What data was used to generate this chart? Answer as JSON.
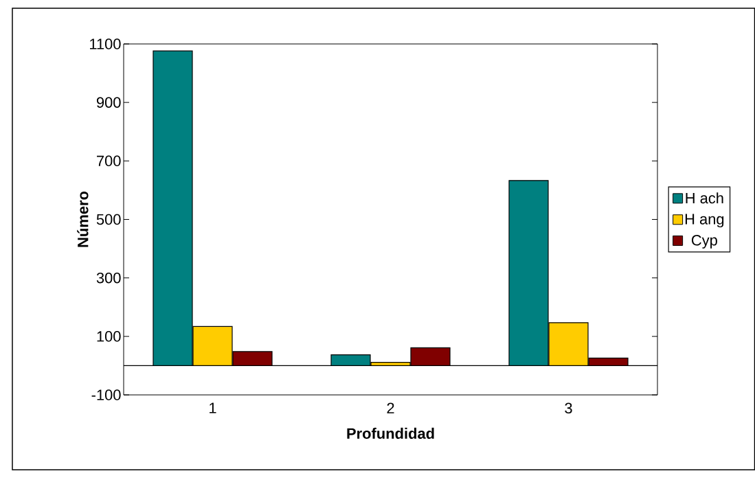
{
  "chart_data": {
    "type": "bar",
    "xlabel": "Profundidad",
    "ylabel": "Número",
    "categories": [
      "1",
      "2",
      "3"
    ],
    "series": [
      {
        "name": "H ach",
        "color": "#008080",
        "values": [
          1076,
          37,
          633
        ]
      },
      {
        "name": "H ang",
        "color": "#ffcc00",
        "values": [
          134,
          11,
          147
        ]
      },
      {
        "name": "Cyp",
        "color": "#800000",
        "values": [
          48,
          61,
          26
        ]
      }
    ],
    "ylim": [
      -100,
      1100
    ],
    "yticks": [
      -100,
      100,
      300,
      500,
      700,
      900,
      1100
    ],
    "grid": false,
    "legend": "right"
  }
}
